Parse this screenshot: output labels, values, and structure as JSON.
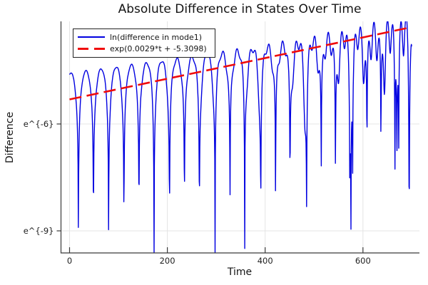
{
  "title": "Absolute Difference in States Over Time",
  "axes": {
    "xlabel": "Time",
    "ylabel": "Difference",
    "xlim": [
      -17.5,
      715.5
    ],
    "ylim_ln": [
      -9.62,
      -3.12
    ],
    "x_ticks": [
      {
        "value": 0,
        "label": "0"
      },
      {
        "value": 200,
        "label": "200"
      },
      {
        "value": 400,
        "label": "400"
      },
      {
        "value": 600,
        "label": "600"
      }
    ],
    "y_ticks": [
      {
        "ln_value": -6,
        "label": "e^{-6}"
      },
      {
        "ln_value": -9,
        "label": "e^{-9}"
      }
    ],
    "grid": true,
    "grid_color": "#e4e4e4",
    "axis_color": "#3a3a3a"
  },
  "legend": {
    "entries": [
      {
        "label": "ln(difference in mode1)",
        "color": "#0000e0",
        "style": "solid"
      },
      {
        "label": "exp(0.0029*t + -5.3098)",
        "color": "#f00b0b",
        "style": "dashed"
      }
    ]
  },
  "chart_data": {
    "type": "line",
    "title": "Absolute Difference in States Over Time",
    "xlabel": "Time",
    "ylabel": "Difference",
    "x_range": [
      0,
      700
    ],
    "y_axis_scale": "log_e",
    "y_tick_values_ln": [
      -6,
      -9
    ],
    "legend_position": "top-left",
    "grid": true,
    "series": [
      {
        "name": "ln(difference in mode1)",
        "color": "#0000e0",
        "style": "solid",
        "description": "Log of absolute difference: oscillatory arches with sharp dips at zero crossings every ~31 time units; dip depth shrinks from ~e^-9.4 at t=18 to ~e^-4.5 by t=700 while peak envelope rises from ~e^-4.6 to ~e^-3.3",
        "model": {
          "kind": "log_abs_oscillation",
          "formula": "v(t) = envelope_intercept + envelope_slope*t + ln|sin(2pi*(t-carrier_phase_t0)/carrier_period) + secondary_amp0*exp(secondary_growth*t)*sin(2pi*t/secondary_period + secondary_phase)|",
          "envelope_intercept": -4.57,
          "envelope_slope": 0.00179,
          "carrier_period": 62,
          "carrier_phase_t0": 18,
          "secondary_period": 11,
          "secondary_phase": 1.0,
          "secondary_amp0": 0.012,
          "secondary_growth": 0.0055,
          "t_start": 0,
          "t_end": 700,
          "sample_step": 0.6
        }
      },
      {
        "name": "exp(0.0029*t + -5.3098)",
        "color": "#f00b0b",
        "style": "dashed",
        "description": "Linear fit in ln-space from (0, -5.3098) to (697, -3.288)",
        "model": {
          "kind": "linear_ln",
          "slope": 0.0029,
          "intercept": -5.3098,
          "t_start": 0,
          "t_end": 697
        }
      }
    ]
  }
}
